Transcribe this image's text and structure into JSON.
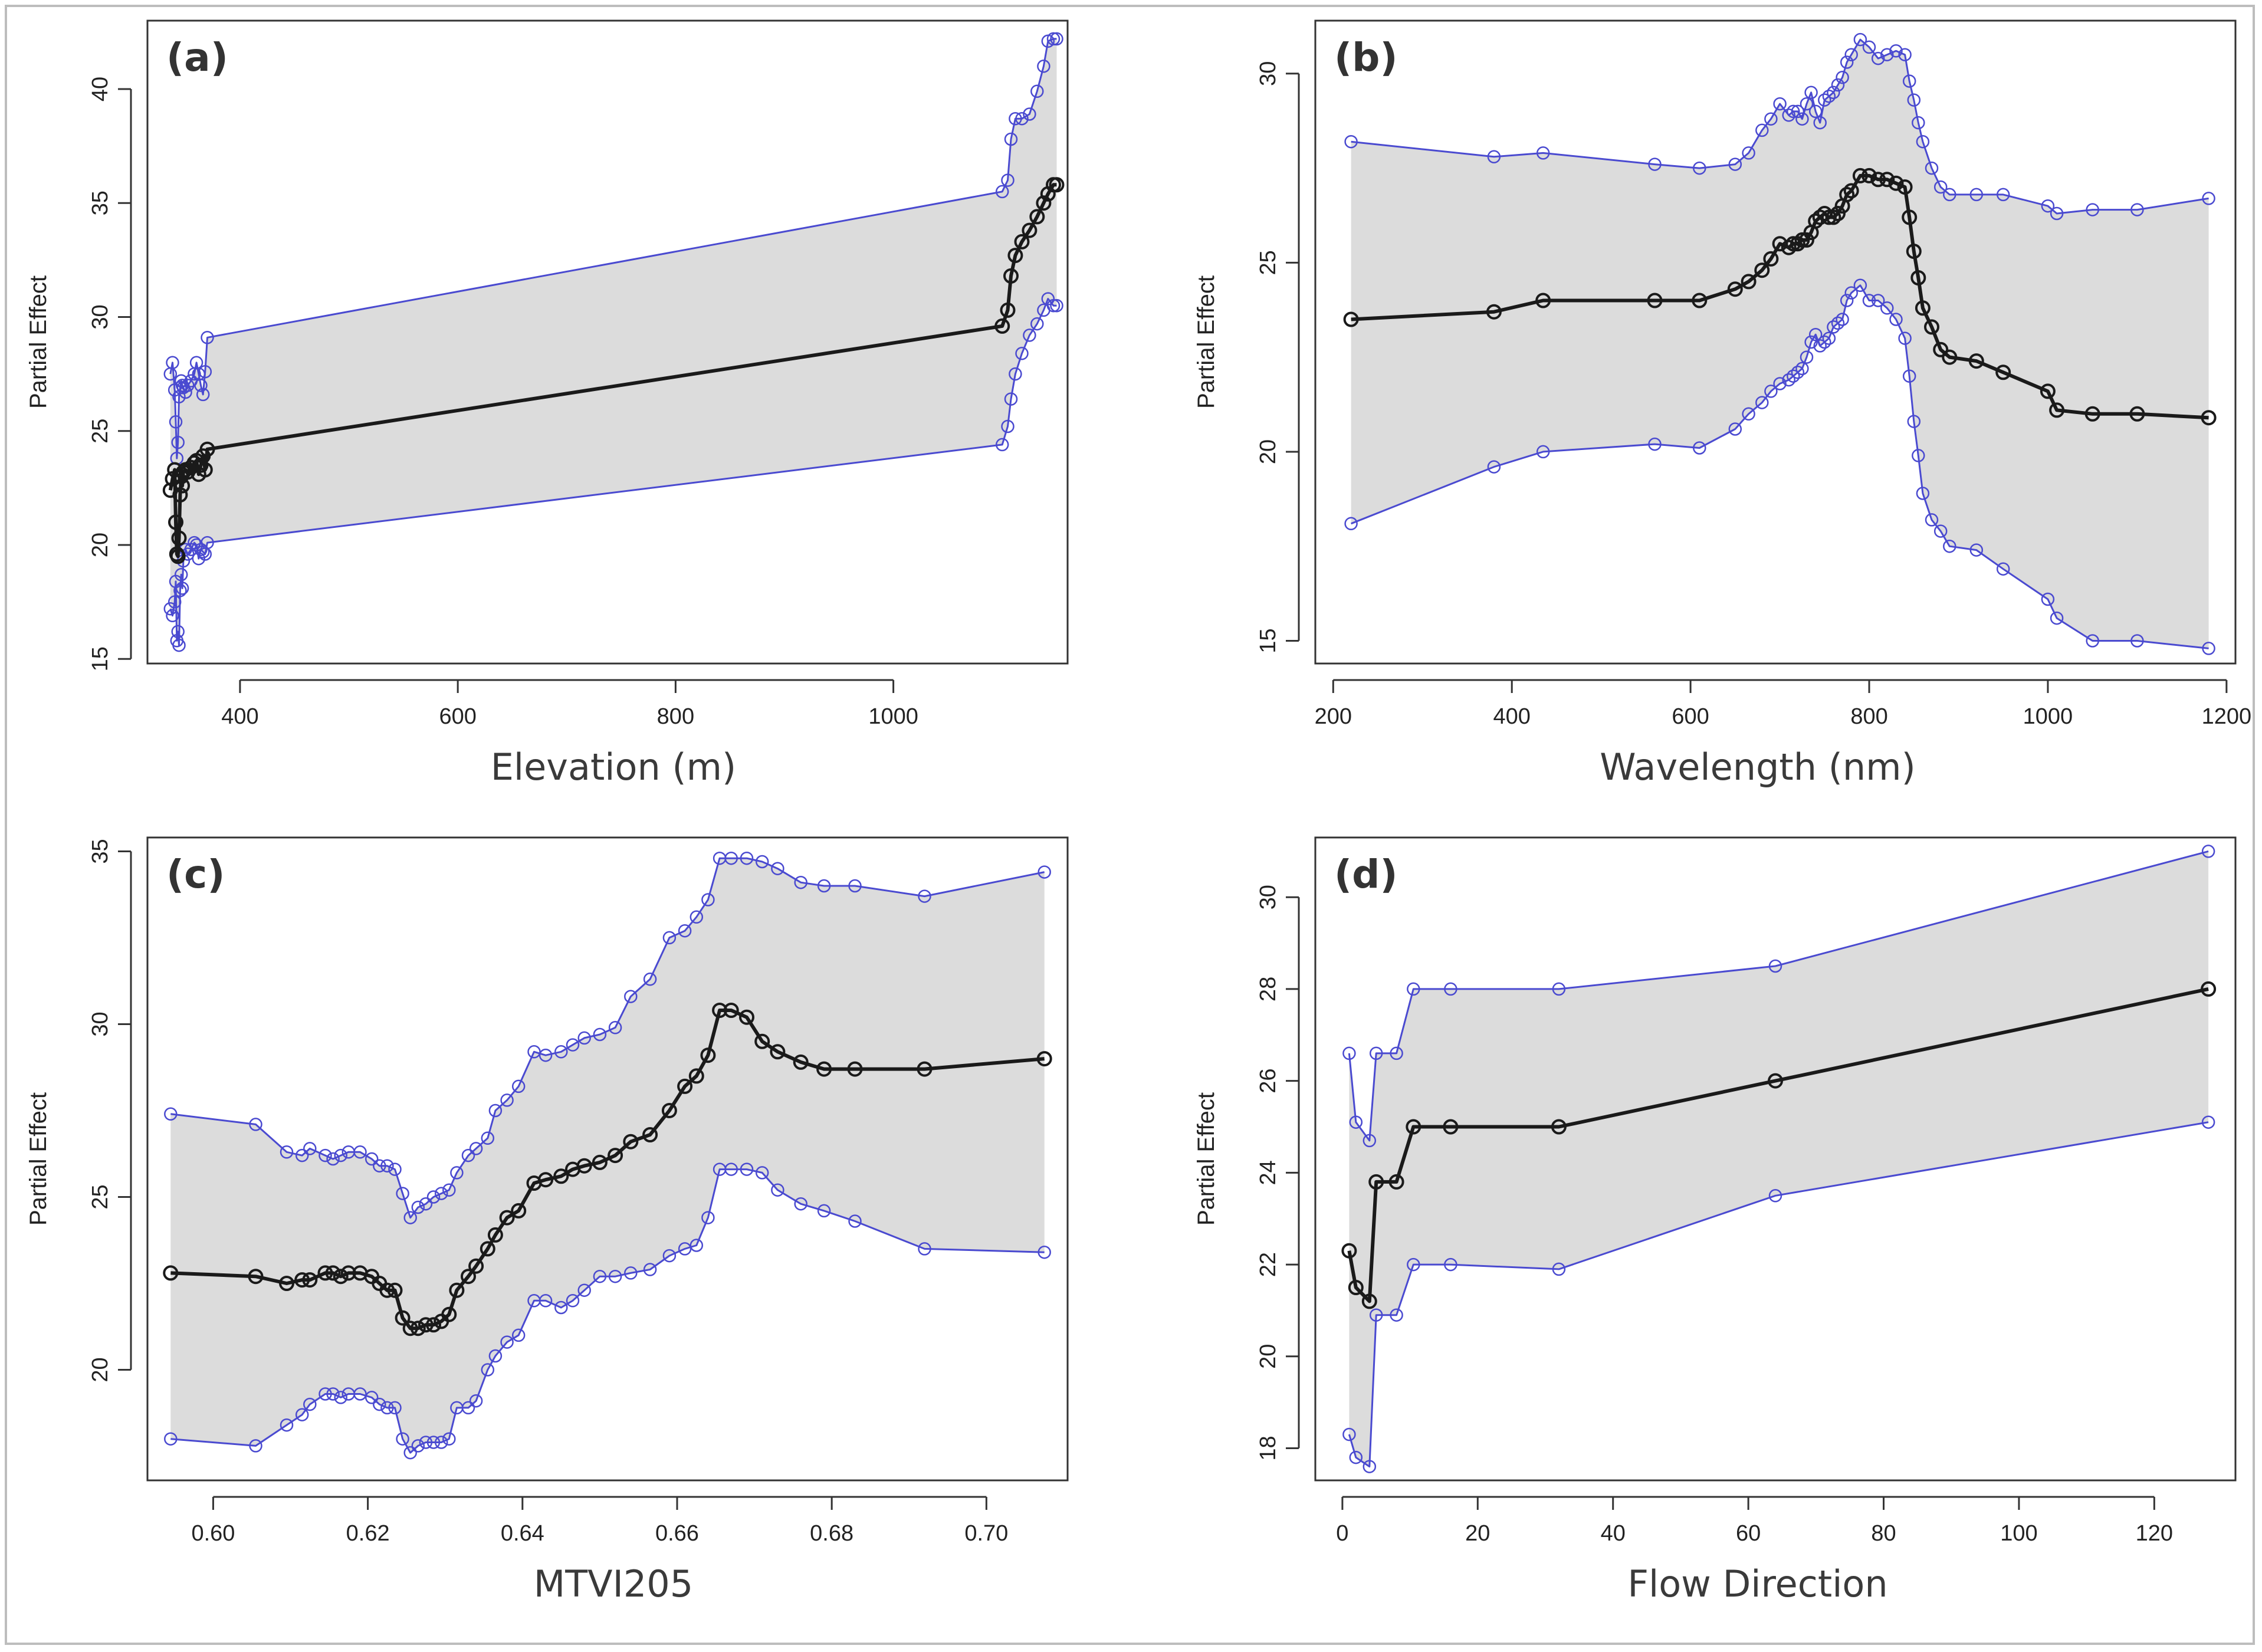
{
  "colors": {
    "band": "#dcdcdc",
    "bound_line": "#4a4ad0",
    "bound_point": "#4a4ad0",
    "mean_line": "#1a1a1a",
    "frame": "#bdbdbd"
  },
  "chart_data": [
    {
      "id": "a",
      "panel_label": "(a)",
      "type": "line",
      "title": "",
      "xlabel": "Elevation (m)",
      "ylabel": "Partial Effect",
      "xlim": [
        315,
        1160
      ],
      "ylim": [
        14.8,
        43.0
      ],
      "xticks": [
        400,
        600,
        800,
        1000
      ],
      "yticks": [
        15,
        20,
        25,
        30,
        35,
        40
      ],
      "x": [
        336,
        338,
        340,
        341,
        342,
        343,
        344,
        345,
        346,
        347,
        348,
        350,
        352,
        355,
        358,
        360,
        362,
        364,
        366,
        368,
        370,
        1100,
        1105,
        1108,
        1112,
        1118,
        1125,
        1132,
        1138,
        1142,
        1147,
        1150
      ],
      "mean": [
        22.4,
        22.9,
        23.3,
        21.0,
        19.6,
        19.5,
        20.3,
        22.2,
        23.0,
        22.6,
        23.2,
        23.3,
        23.2,
        23.4,
        23.6,
        23.7,
        23.1,
        23.5,
        23.9,
        23.3,
        24.2,
        29.6,
        30.3,
        31.8,
        32.7,
        33.3,
        33.8,
        34.4,
        35.0,
        35.4,
        35.8,
        35.8
      ],
      "upper": [
        27.5,
        28.0,
        26.8,
        25.4,
        23.8,
        24.5,
        26.5,
        26.9,
        27.2,
        27.0,
        26.9,
        26.7,
        27.0,
        27.2,
        27.5,
        28.0,
        27.5,
        27.0,
        26.6,
        27.6,
        29.1,
        35.5,
        36.0,
        37.8,
        38.7,
        38.7,
        38.9,
        39.9,
        41.0,
        42.1,
        42.2,
        42.2
      ],
      "lower": [
        17.2,
        16.9,
        17.5,
        18.4,
        15.8,
        16.2,
        15.6,
        18.0,
        18.7,
        18.1,
        19.3,
        19.8,
        19.6,
        19.8,
        20.1,
        20.0,
        19.4,
        19.8,
        19.7,
        19.6,
        20.1,
        24.4,
        25.2,
        26.4,
        27.5,
        28.4,
        29.2,
        29.7,
        30.3,
        30.8,
        30.5,
        30.5
      ]
    },
    {
      "id": "b",
      "panel_label": "(b)",
      "type": "line",
      "title": "",
      "xlabel": "Wavelength (nm)",
      "ylabel": "Partial Effect",
      "xlim": [
        180,
        1210
      ],
      "ylim": [
        14.4,
        31.4
      ],
      "xticks": [
        200,
        400,
        600,
        800,
        1000,
        1200
      ],
      "yticks": [
        15,
        20,
        25,
        30
      ],
      "x": [
        220,
        380,
        435,
        560,
        610,
        650,
        665,
        680,
        690,
        700,
        710,
        715,
        720,
        725,
        730,
        735,
        740,
        745,
        750,
        755,
        760,
        765,
        770,
        775,
        780,
        790,
        800,
        810,
        820,
        830,
        840,
        845,
        850,
        855,
        860,
        870,
        880,
        890,
        920,
        950,
        1000,
        1010,
        1050,
        1100,
        1180
      ],
      "mean": [
        23.5,
        23.7,
        24.0,
        24.0,
        24.0,
        24.3,
        24.5,
        24.8,
        25.1,
        25.5,
        25.4,
        25.5,
        25.5,
        25.6,
        25.6,
        25.8,
        26.1,
        26.2,
        26.3,
        26.2,
        26.2,
        26.3,
        26.5,
        26.8,
        26.9,
        27.3,
        27.3,
        27.2,
        27.2,
        27.1,
        27.0,
        26.2,
        25.3,
        24.6,
        23.8,
        23.3,
        22.7,
        22.5,
        22.4,
        22.1,
        21.6,
        21.1,
        21.0,
        21.0,
        20.9
      ],
      "upper": [
        28.2,
        27.8,
        27.9,
        27.6,
        27.5,
        27.6,
        27.9,
        28.5,
        28.8,
        29.2,
        28.9,
        29.0,
        29.0,
        28.8,
        29.2,
        29.5,
        29.0,
        28.7,
        29.3,
        29.4,
        29.5,
        29.7,
        29.9,
        30.3,
        30.5,
        30.9,
        30.7,
        30.4,
        30.5,
        30.6,
        30.5,
        29.8,
        29.3,
        28.7,
        28.2,
        27.5,
        27.0,
        26.8,
        26.8,
        26.8,
        26.5,
        26.3,
        26.4,
        26.4,
        26.7
      ],
      "lower": [
        18.1,
        19.6,
        20.0,
        20.2,
        20.1,
        20.6,
        21.0,
        21.3,
        21.6,
        21.8,
        21.9,
        22.0,
        22.1,
        22.2,
        22.5,
        22.9,
        23.1,
        22.8,
        22.9,
        23.0,
        23.3,
        23.4,
        23.5,
        24.0,
        24.2,
        24.4,
        24.0,
        24.0,
        23.8,
        23.5,
        23.0,
        22.0,
        20.8,
        19.9,
        18.9,
        18.2,
        17.9,
        17.5,
        17.4,
        16.9,
        16.1,
        15.6,
        15.0,
        15.0,
        14.8
      ]
    },
    {
      "id": "c",
      "panel_label": "(c)",
      "type": "line",
      "title": "",
      "xlabel": "MTVI205",
      "ylabel": "Partial Effect",
      "xlim": [
        0.5915,
        0.7105
      ],
      "ylim": [
        16.8,
        35.4
      ],
      "xticks": [
        0.6,
        0.62,
        0.64,
        0.66,
        0.68,
        0.7
      ],
      "xtick_labels": [
        "0.60",
        "0.62",
        "0.64",
        "0.66",
        "0.68",
        "0.70"
      ],
      "yticks": [
        20,
        25,
        30,
        35
      ],
      "x": [
        0.5945,
        0.6055,
        0.6095,
        0.6115,
        0.6125,
        0.6145,
        0.6155,
        0.6165,
        0.6175,
        0.619,
        0.6205,
        0.6215,
        0.6225,
        0.6235,
        0.6245,
        0.6255,
        0.6265,
        0.6275,
        0.6285,
        0.6295,
        0.6305,
        0.6315,
        0.633,
        0.634,
        0.6355,
        0.6365,
        0.638,
        0.6395,
        0.6415,
        0.643,
        0.645,
        0.6465,
        0.648,
        0.65,
        0.652,
        0.654,
        0.6565,
        0.659,
        0.661,
        0.6625,
        0.664,
        0.6655,
        0.667,
        0.669,
        0.671,
        0.673,
        0.676,
        0.679,
        0.683,
        0.692,
        0.7075
      ],
      "mean": [
        22.8,
        22.7,
        22.5,
        22.6,
        22.6,
        22.8,
        22.8,
        22.7,
        22.8,
        22.8,
        22.7,
        22.5,
        22.3,
        22.3,
        21.5,
        21.2,
        21.2,
        21.3,
        21.3,
        21.4,
        21.6,
        22.3,
        22.7,
        23.0,
        23.5,
        23.9,
        24.4,
        24.6,
        25.4,
        25.5,
        25.6,
        25.8,
        25.9,
        26.0,
        26.2,
        26.6,
        26.8,
        27.5,
        28.2,
        28.5,
        29.1,
        30.4,
        30.4,
        30.2,
        29.5,
        29.2,
        28.9,
        28.7,
        28.7,
        28.7,
        29.0
      ],
      "upper": [
        27.4,
        27.1,
        26.3,
        26.2,
        26.4,
        26.2,
        26.1,
        26.2,
        26.3,
        26.3,
        26.1,
        25.9,
        25.9,
        25.8,
        25.1,
        24.4,
        24.7,
        24.8,
        25.0,
        25.1,
        25.2,
        25.7,
        26.2,
        26.4,
        26.7,
        27.5,
        27.8,
        28.2,
        29.2,
        29.1,
        29.2,
        29.4,
        29.6,
        29.7,
        29.9,
        30.8,
        31.3,
        32.5,
        32.7,
        33.1,
        33.6,
        34.8,
        34.8,
        34.8,
        34.7,
        34.5,
        34.1,
        34.0,
        34.0,
        33.7,
        34.4
      ],
      "lower": [
        18.0,
        17.8,
        18.4,
        18.7,
        19.0,
        19.3,
        19.3,
        19.2,
        19.3,
        19.3,
        19.2,
        19.0,
        18.9,
        18.9,
        18.0,
        17.6,
        17.8,
        17.9,
        17.9,
        17.9,
        18.0,
        18.9,
        18.9,
        19.1,
        20.0,
        20.4,
        20.8,
        21.0,
        22.0,
        22.0,
        21.8,
        22.0,
        22.3,
        22.7,
        22.7,
        22.8,
        22.9,
        23.3,
        23.5,
        23.6,
        24.4,
        25.8,
        25.8,
        25.8,
        25.7,
        25.2,
        24.8,
        24.6,
        24.3,
        23.5,
        23.4
      ]
    },
    {
      "id": "d",
      "panel_label": "(d)",
      "type": "line",
      "title": "",
      "xlabel": "Flow Direction",
      "ylabel": "Partial Effect",
      "xlim": [
        -4,
        132
      ],
      "ylim": [
        17.3,
        31.3
      ],
      "xticks": [
        0,
        20,
        40,
        60,
        80,
        100,
        120
      ],
      "yticks": [
        18,
        20,
        22,
        24,
        26,
        28,
        30
      ],
      "x": [
        1,
        2,
        4,
        5,
        8,
        10.5,
        16,
        32,
        64,
        128
      ],
      "mean": [
        22.3,
        21.5,
        21.2,
        23.8,
        23.8,
        25.0,
        25.0,
        25.0,
        26.0,
        28.0
      ],
      "upper": [
        26.6,
        25.1,
        24.7,
        26.6,
        26.6,
        28.0,
        28.0,
        28.0,
        28.5,
        31.0
      ],
      "lower": [
        18.3,
        17.8,
        17.6,
        20.9,
        20.9,
        22.0,
        22.0,
        21.9,
        23.5,
        25.1
      ]
    }
  ]
}
